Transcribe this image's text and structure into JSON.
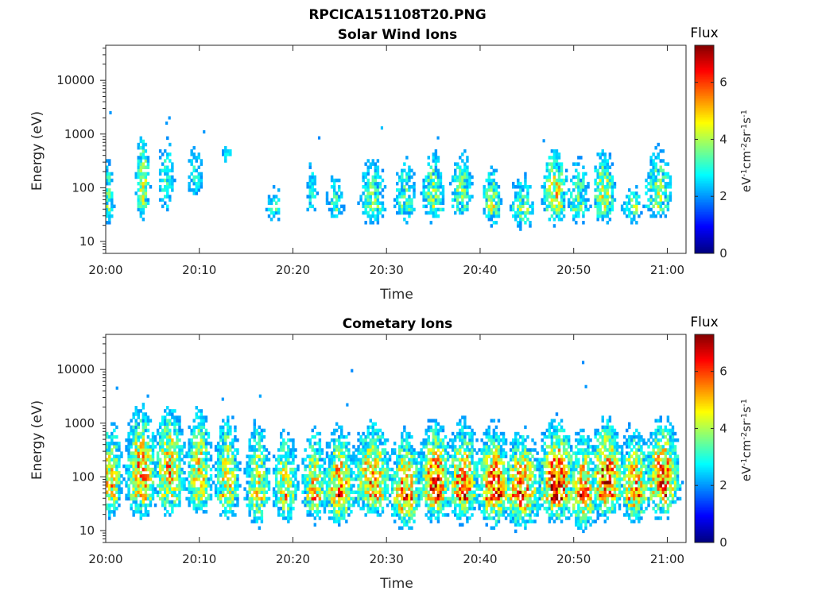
{
  "page": {
    "file_title": "RPCICA151108T20.PNG"
  },
  "chart_data": [
    {
      "type": "heatmap",
      "title": "Solar Wind Ions",
      "xlabel": "Time",
      "ylabel": "Energy (eV)",
      "x_ticks": [
        "20:00",
        "20:10",
        "20:20",
        "20:30",
        "20:40",
        "20:50",
        "21:00"
      ],
      "x_range": [
        "20:00",
        "21:02"
      ],
      "y_scale": "log",
      "y_ticks": [
        "10",
        "100",
        "1000",
        "10000"
      ],
      "y_range": [
        6,
        45000
      ],
      "colorbar": {
        "label": "Flux",
        "unit": "eV-1cm-2sr-1s-1",
        "range": [
          0,
          7.3
        ],
        "ticks": [
          "0",
          "2",
          "4",
          "6"
        ],
        "colormap": "jet"
      },
      "bursts": [
        {
          "t": 0.3,
          "e": 60,
          "f": 3.4,
          "ew": 0.5,
          "w": 0.5
        },
        {
          "t": 4.0,
          "e": 100,
          "f": 4.3,
          "ew": 0.6,
          "w": 0.6
        },
        {
          "t": 6.5,
          "e": 120,
          "f": 3.0,
          "ew": 0.6,
          "w": 0.8
        },
        {
          "t": 9.6,
          "e": 150,
          "f": 2.8,
          "ew": 0.5,
          "w": 0.8
        },
        {
          "t": 13.0,
          "e": 400,
          "f": 2.4,
          "ew": 0.3,
          "w": 0.6
        },
        {
          "t": 18.0,
          "e": 40,
          "f": 2.8,
          "ew": 0.35,
          "w": 0.8
        },
        {
          "t": 22.0,
          "e": 80,
          "f": 2.7,
          "ew": 0.5,
          "w": 0.6
        },
        {
          "t": 24.5,
          "e": 50,
          "f": 3.2,
          "ew": 0.4,
          "w": 0.8
        },
        {
          "t": 28.5,
          "e": 60,
          "f": 3.6,
          "ew": 0.5,
          "w": 1.2
        },
        {
          "t": 32.0,
          "e": 60,
          "f": 3.4,
          "ew": 0.5,
          "w": 1.0
        },
        {
          "t": 35.0,
          "e": 70,
          "f": 3.9,
          "ew": 0.5,
          "w": 1.0
        },
        {
          "t": 38.0,
          "e": 80,
          "f": 3.6,
          "ew": 0.5,
          "w": 1.0
        },
        {
          "t": 41.3,
          "e": 50,
          "f": 4.3,
          "ew": 0.4,
          "w": 0.8
        },
        {
          "t": 44.5,
          "e": 40,
          "f": 3.5,
          "ew": 0.4,
          "w": 1.1
        },
        {
          "t": 48.0,
          "e": 70,
          "f": 4.8,
          "ew": 0.5,
          "w": 1.0
        },
        {
          "t": 50.5,
          "e": 60,
          "f": 3.4,
          "ew": 0.5,
          "w": 1.0
        },
        {
          "t": 53.2,
          "e": 70,
          "f": 4.7,
          "ew": 0.5,
          "w": 0.9
        },
        {
          "t": 56.3,
          "e": 40,
          "f": 3.5,
          "ew": 0.3,
          "w": 0.9
        },
        {
          "t": 59.0,
          "e": 80,
          "f": 4.0,
          "ew": 0.5,
          "w": 1.2
        }
      ],
      "spots": [
        {
          "t": 0.5,
          "e": 2500,
          "f": 2.0
        },
        {
          "t": 6.8,
          "e": 2000,
          "f": 2.0
        },
        {
          "t": 6.5,
          "e": 1600,
          "f": 2.0
        },
        {
          "t": 10.5,
          "e": 1100,
          "f": 2.0
        },
        {
          "t": 22.8,
          "e": 850,
          "f": 1.9
        },
        {
          "t": 29.5,
          "e": 1300,
          "f": 2.3
        },
        {
          "t": 35.5,
          "e": 850,
          "f": 2.0
        },
        {
          "t": 46.8,
          "e": 750,
          "f": 2.0
        }
      ]
    },
    {
      "type": "heatmap",
      "title": "Cometary Ions",
      "xlabel": "Time",
      "ylabel": "Energy (eV)",
      "x_ticks": [
        "20:00",
        "20:10",
        "20:20",
        "20:30",
        "20:40",
        "20:50",
        "21:00"
      ],
      "x_range": [
        "20:00",
        "21:02"
      ],
      "y_scale": "log",
      "y_ticks": [
        "10",
        "100",
        "1000",
        "10000"
      ],
      "y_range": [
        6,
        45000
      ],
      "colorbar": {
        "label": "Flux",
        "unit": "eV-1cm-2sr-1s-1",
        "range": [
          0,
          7.3
        ],
        "ticks": [
          "0",
          "2",
          "4",
          "6"
        ],
        "colormap": "jet"
      },
      "bursts": [
        {
          "t": 0.5,
          "e": 80,
          "f": 5.0,
          "ew": 0.6,
          "w": 1.0
        },
        {
          "t": 3.8,
          "e": 100,
          "f": 5.5,
          "ew": 0.7,
          "w": 1.2
        },
        {
          "t": 6.8,
          "e": 110,
          "f": 5.3,
          "ew": 0.7,
          "w": 1.2
        },
        {
          "t": 10.0,
          "e": 100,
          "f": 5.0,
          "ew": 0.7,
          "w": 1.0
        },
        {
          "t": 13.0,
          "e": 80,
          "f": 4.8,
          "ew": 0.7,
          "w": 1.0
        },
        {
          "t": 16.2,
          "e": 60,
          "f": 4.6,
          "ew": 0.7,
          "w": 1.0
        },
        {
          "t": 19.2,
          "e": 60,
          "f": 4.7,
          "ew": 0.6,
          "w": 1.0
        },
        {
          "t": 22.3,
          "e": 60,
          "f": 4.9,
          "ew": 0.6,
          "w": 1.0
        },
        {
          "t": 25.0,
          "e": 60,
          "f": 5.6,
          "ew": 0.6,
          "w": 1.2
        },
        {
          "t": 28.5,
          "e": 80,
          "f": 5.6,
          "ew": 0.6,
          "w": 1.4
        },
        {
          "t": 32.0,
          "e": 50,
          "f": 5.7,
          "ew": 0.6,
          "w": 1.2
        },
        {
          "t": 35.2,
          "e": 70,
          "f": 6.1,
          "ew": 0.6,
          "w": 1.2
        },
        {
          "t": 38.2,
          "e": 70,
          "f": 5.9,
          "ew": 0.6,
          "w": 1.2
        },
        {
          "t": 41.5,
          "e": 60,
          "f": 6.3,
          "ew": 0.6,
          "w": 1.2
        },
        {
          "t": 44.5,
          "e": 50,
          "f": 5.8,
          "ew": 0.6,
          "w": 1.4
        },
        {
          "t": 48.2,
          "e": 70,
          "f": 6.4,
          "ew": 0.6,
          "w": 1.4
        },
        {
          "t": 51.0,
          "e": 50,
          "f": 5.6,
          "ew": 0.6,
          "w": 1.2
        },
        {
          "t": 53.5,
          "e": 80,
          "f": 6.3,
          "ew": 0.6,
          "w": 1.2
        },
        {
          "t": 56.5,
          "e": 60,
          "f": 5.4,
          "ew": 0.6,
          "w": 1.2
        },
        {
          "t": 59.5,
          "e": 80,
          "f": 5.9,
          "ew": 0.6,
          "w": 1.4
        }
      ],
      "spots": [
        {
          "t": 1.2,
          "e": 4500,
          "f": 2.0
        },
        {
          "t": 4.5,
          "e": 3200,
          "f": 2.0
        },
        {
          "t": 12.5,
          "e": 2800,
          "f": 2.0
        },
        {
          "t": 16.5,
          "e": 3200,
          "f": 2.1
        },
        {
          "t": 26.3,
          "e": 9500,
          "f": 1.9
        },
        {
          "t": 25.8,
          "e": 2200,
          "f": 2.0
        },
        {
          "t": 51.0,
          "e": 13500,
          "f": 1.9
        },
        {
          "t": 51.3,
          "e": 4800,
          "f": 2.0
        }
      ]
    }
  ]
}
